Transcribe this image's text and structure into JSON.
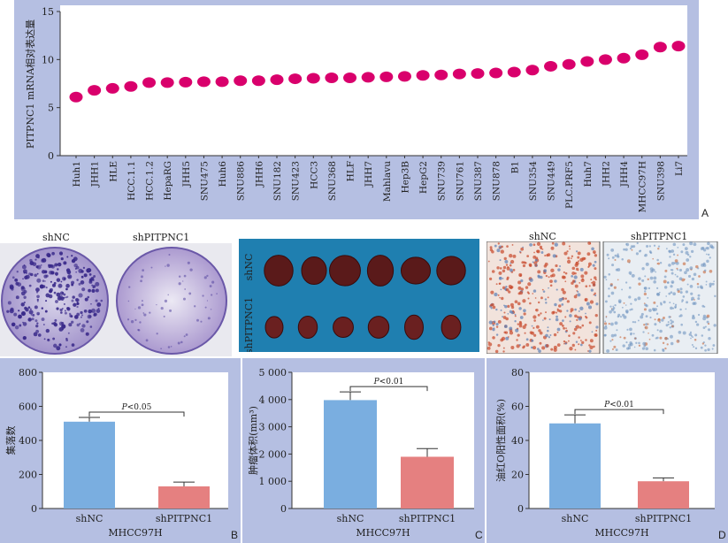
{
  "chart_data": [
    {
      "type": "scatter",
      "panel": "A",
      "ylabel": "PITPNC1 mRNA相对表达量",
      "ylim": [
        0,
        15
      ],
      "yticks": [
        0,
        5,
        10,
        15
      ],
      "categories": [
        "Huh1",
        "JHH1",
        "HLE",
        "HCC.1.1",
        "HCC.1.2",
        "HepaRG",
        "JHH5",
        "SNU475",
        "Huh6",
        "SNU886",
        "JHH6",
        "SNU182",
        "SNU423",
        "HCC3",
        "SNU368",
        "HLF",
        "JHH7",
        "Mahlavu",
        "Hep3B",
        "HepG2",
        "SNU739",
        "SNU761",
        "SNU387",
        "SNU878",
        "B1",
        "SNU354",
        "SNU449",
        "PLC.PRF5",
        "Huh7",
        "JHH2",
        "JHH4",
        "MHCC97H",
        "SNU398",
        "Li7"
      ],
      "values": [
        6.1,
        6.8,
        7.0,
        7.2,
        7.6,
        7.6,
        7.65,
        7.7,
        7.7,
        7.8,
        7.8,
        7.9,
        8.0,
        8.05,
        8.1,
        8.1,
        8.15,
        8.2,
        8.25,
        8.35,
        8.4,
        8.5,
        8.55,
        8.6,
        8.7,
        8.9,
        9.3,
        9.5,
        9.8,
        10.0,
        10.15,
        10.5,
        11.3,
        11.4
      ],
      "color": "#d9006c"
    },
    {
      "type": "bar",
      "panel": "B",
      "categories": [
        "shNC",
        "shPITPNC1"
      ],
      "values": [
        510,
        130
      ],
      "errors": [
        25,
        25
      ],
      "colors": [
        "#7aaee0",
        "#e58080"
      ],
      "ylabel": "集落数",
      "xlabel": "MHCC97H",
      "ylim": [
        0,
        800
      ],
      "yticks": [
        "0",
        "200",
        "400",
        "600",
        "800"
      ],
      "yticks_values": [
        0,
        200,
        400,
        600,
        800
      ],
      "annotation": "P<0.05"
    },
    {
      "type": "bar",
      "panel": "C",
      "categories": [
        "shNC",
        "shPITPNC1"
      ],
      "values": [
        3980,
        1900
      ],
      "errors": [
        300,
        300
      ],
      "colors": [
        "#7aaee0",
        "#e58080"
      ],
      "ylabel": "肿瘤体积(mm³)",
      "xlabel": "MHCC97H",
      "ylim": [
        0,
        5000
      ],
      "yticks": [
        "0",
        "1 000",
        "2 000",
        "3 000",
        "4 000",
        "5 000"
      ],
      "yticks_values": [
        0,
        1000,
        2000,
        3000,
        4000,
        5000
      ],
      "annotation": "P<0.01"
    },
    {
      "type": "bar",
      "panel": "D",
      "categories": [
        "shNC",
        "shPITPNC1"
      ],
      "values": [
        50,
        16
      ],
      "errors": [
        5,
        2
      ],
      "colors": [
        "#7aaee0",
        "#e58080"
      ],
      "ylabel": "油红O阳性面积(%)",
      "xlabel": "MHCC97H",
      "ylim": [
        0,
        80
      ],
      "yticks": [
        "0",
        "20",
        "40",
        "60",
        "80"
      ],
      "yticks_values": [
        0,
        20,
        40,
        60,
        80
      ],
      "annotation": "P<0.01"
    }
  ],
  "images": {
    "colony_labels": [
      "shNC",
      "shPITPNC1"
    ],
    "tumor_labels": [
      "shNC",
      "shPITPNC1"
    ],
    "stain_labels": [
      "shNC",
      "shPITPNC1"
    ]
  },
  "panel_letters": [
    "A",
    "B",
    "C",
    "D"
  ]
}
